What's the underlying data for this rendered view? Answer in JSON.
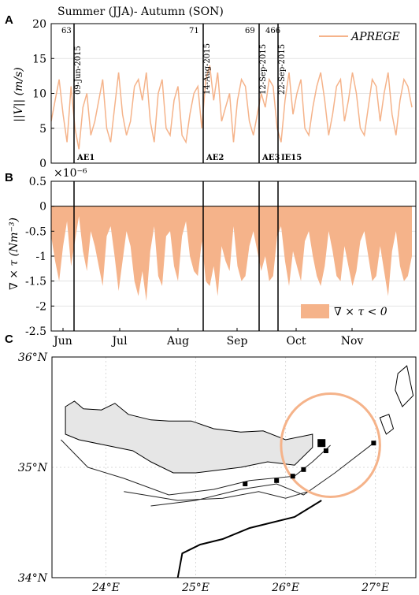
{
  "panel_letters": [
    "A",
    "B",
    "C"
  ],
  "chart_data": [
    {
      "type": "line",
      "title": "Summer (JJA)- Autumn (SON)",
      "ylabel": "||V|| (m/s)",
      "ylim": [
        0,
        20
      ],
      "yticks": [
        "0",
        "5",
        "10",
        "15",
        "20"
      ],
      "legend": {
        "label": "APREGE",
        "placement": "top-right",
        "color": "#f5b38a"
      },
      "series": [
        {
          "name": "APREGE",
          "color": "#f5b38a",
          "x_days": [
            0,
            2,
            4,
            6,
            8,
            10,
            12,
            14,
            16,
            18,
            20,
            22,
            24,
            26,
            28,
            30,
            32,
            34,
            36,
            38,
            40,
            42,
            44,
            46,
            48,
            50,
            52,
            54,
            56,
            58,
            60,
            62,
            64,
            66,
            68,
            70,
            72,
            74,
            76,
            78,
            80,
            82,
            84,
            86,
            88,
            90,
            92,
            94,
            96,
            98,
            100,
            102,
            104,
            106,
            108,
            110,
            112,
            114,
            116,
            118,
            120,
            122,
            124,
            126,
            128,
            130,
            132,
            134,
            136,
            138,
            140,
            142,
            144,
            146,
            148,
            150,
            152,
            154,
            156,
            158,
            160,
            162,
            164,
            166,
            168,
            170,
            172,
            174,
            176,
            178,
            180,
            182
          ],
          "values": [
            6,
            9,
            12,
            7,
            3,
            11,
            5,
            2,
            8,
            10,
            4,
            6,
            9,
            12,
            5,
            3,
            8,
            13,
            7,
            4,
            6,
            11,
            12,
            9,
            13,
            6,
            3,
            10,
            12,
            5,
            4,
            9,
            11,
            4,
            3,
            7,
            10,
            11,
            5,
            12,
            14,
            9,
            13,
            6,
            8,
            10,
            3,
            9,
            12,
            11,
            6,
            4,
            7,
            10,
            8,
            12,
            11,
            5,
            3,
            9,
            13,
            7,
            10,
            12,
            5,
            4,
            8,
            11,
            13,
            9,
            4,
            7,
            11,
            12,
            6,
            9,
            13,
            10,
            5,
            4,
            8,
            12,
            11,
            6,
            10,
            13,
            7,
            4,
            9,
            12,
            11,
            8
          ]
        }
      ],
      "events": [
        {
          "label": "AE1",
          "date": "09-Jun-2015",
          "count": "63"
        },
        {
          "label": "AE2",
          "date": "14-Aug-2015",
          "count": "71"
        },
        {
          "label": "AE3",
          "date": "12-Sep-2015",
          "count": "69"
        },
        {
          "label": "IE15",
          "date": "22-Sep-2015",
          "count": "466"
        }
      ]
    },
    {
      "type": "area",
      "ylabel": "∇ × τ (Nm⁻³)",
      "exponent": "×10⁻⁶",
      "ylim": [
        -2.5,
        0.5
      ],
      "yticks": [
        "0.5",
        "0",
        "-0.5",
        "-1",
        "-1.5",
        "-2",
        "-2.5"
      ],
      "xticks": [
        "Jun",
        "Jul",
        "Aug",
        "Sep",
        "Oct",
        "Nov"
      ],
      "legend": {
        "label": "∇ × τ < 0",
        "placement": "bottom-right",
        "color": "#f5b38a"
      },
      "series": [
        {
          "name": "∇ × τ < 0",
          "color": "#f5b38a",
          "x_days": [
            0,
            2,
            4,
            6,
            8,
            10,
            12,
            14,
            16,
            18,
            20,
            22,
            24,
            26,
            28,
            30,
            32,
            34,
            36,
            38,
            40,
            42,
            44,
            46,
            48,
            50,
            52,
            54,
            56,
            58,
            60,
            62,
            64,
            66,
            68,
            70,
            72,
            74,
            76,
            78,
            80,
            82,
            84,
            86,
            88,
            90,
            92,
            94,
            96,
            98,
            100,
            102,
            104,
            106,
            108,
            110,
            112,
            114,
            116,
            118,
            120,
            122,
            124,
            126,
            128,
            130,
            132,
            134,
            136,
            138,
            140,
            142,
            144,
            146,
            148,
            150,
            152,
            154,
            156,
            158,
            160,
            162,
            164,
            166,
            168,
            170,
            172,
            174,
            176,
            178,
            180,
            182
          ],
          "values": [
            -0.6,
            -1.1,
            -1.5,
            -0.8,
            -0.3,
            -1.2,
            -0.7,
            -0.2,
            -0.9,
            -1.3,
            -0.5,
            -0.8,
            -1.2,
            -1.6,
            -0.6,
            -0.4,
            -1.0,
            -1.7,
            -1.1,
            -0.5,
            -0.8,
            -1.5,
            -1.8,
            -1.3,
            -1.9,
            -0.9,
            -0.4,
            -1.4,
            -1.6,
            -0.6,
            -0.5,
            -1.2,
            -1.5,
            -0.6,
            -0.3,
            -1.0,
            -1.3,
            -1.4,
            -0.7,
            -1.5,
            -1.6,
            -1.2,
            -1.8,
            -0.8,
            -1.1,
            -1.3,
            -0.4,
            -1.2,
            -1.5,
            -1.4,
            -0.8,
            -0.5,
            -0.9,
            -1.3,
            -1.0,
            -1.5,
            -1.4,
            -0.6,
            -0.4,
            -1.1,
            -1.6,
            -0.9,
            -1.2,
            -1.5,
            -0.7,
            -0.5,
            -1.0,
            -1.4,
            -1.6,
            -1.2,
            -0.5,
            -0.9,
            -1.4,
            -1.5,
            -0.8,
            -1.2,
            -1.6,
            -1.3,
            -0.7,
            -0.5,
            -1.0,
            -1.5,
            -1.4,
            -0.8,
            -1.3,
            -1.8,
            -0.9,
            -0.5,
            -1.2,
            -1.5,
            -1.4,
            -1.0
          ]
        }
      ],
      "events": [
        {
          "label": "AE1"
        },
        {
          "label": "AE2"
        },
        {
          "label": "AE3"
        },
        {
          "label": "IE15"
        }
      ]
    },
    {
      "type": "map",
      "xticks": [
        "24°E",
        "25°E",
        "26°E",
        "27°E"
      ],
      "yticks": [
        "36°N",
        "35°N",
        "34°N"
      ],
      "circle": {
        "color": "#f5b38a",
        "center_lon": 26.5,
        "center_lat": 35.2,
        "radius_deg": 0.55
      },
      "markers_lonlat": [
        [
          26.4,
          35.22
        ],
        [
          26.45,
          35.15
        ],
        [
          26.98,
          35.22
        ],
        [
          26.2,
          34.98
        ],
        [
          26.08,
          34.92
        ],
        [
          25.9,
          34.88
        ],
        [
          25.55,
          34.85
        ]
      ]
    }
  ]
}
